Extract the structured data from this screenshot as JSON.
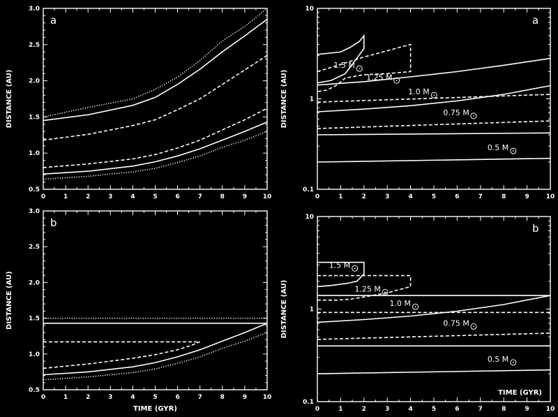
{
  "chart_data": [
    {
      "type": "line",
      "panel_label": "a",
      "ylabel": "DISTANCE (AU)",
      "xlabel": "",
      "xlim": [
        0,
        10
      ],
      "ylim": [
        0.5,
        3.0
      ],
      "yscale": "linear",
      "xticks": [
        0,
        1,
        2,
        3,
        4,
        5,
        6,
        7,
        8,
        9,
        10
      ],
      "yticks": [
        0.5,
        1.0,
        1.5,
        2.0,
        2.5,
        3.0
      ],
      "ytick_labels": [
        "0.5",
        "1.0",
        "1.5",
        "2.0",
        "2.5",
        "3.0"
      ],
      "series": [
        {
          "style": "dotted",
          "x": [
            0,
            2,
            4,
            5,
            6,
            7,
            8,
            9,
            10
          ],
          "y": [
            1.5,
            1.63,
            1.75,
            1.88,
            2.05,
            2.28,
            2.55,
            2.75,
            3.0
          ]
        },
        {
          "style": "solid",
          "x": [
            0,
            2,
            4,
            5,
            6,
            7,
            8,
            9,
            10
          ],
          "y": [
            1.45,
            1.53,
            1.66,
            1.77,
            1.95,
            2.16,
            2.4,
            2.62,
            2.85
          ]
        },
        {
          "style": "dashed",
          "x": [
            0,
            2,
            4,
            5,
            6,
            7,
            8,
            9,
            10
          ],
          "y": [
            1.18,
            1.26,
            1.38,
            1.46,
            1.6,
            1.75,
            1.95,
            2.15,
            2.35
          ]
        },
        {
          "style": "dashed",
          "x": [
            0,
            2,
            4,
            5,
            6,
            7,
            8,
            9,
            10
          ],
          "y": [
            0.8,
            0.85,
            0.92,
            0.98,
            1.07,
            1.18,
            1.32,
            1.46,
            1.62
          ]
        },
        {
          "style": "solid",
          "x": [
            0,
            2,
            4,
            5,
            6,
            7,
            8,
            9,
            10
          ],
          "y": [
            0.71,
            0.75,
            0.82,
            0.88,
            0.96,
            1.06,
            1.18,
            1.3,
            1.43
          ]
        },
        {
          "style": "dotted",
          "x": [
            0,
            2,
            4,
            5,
            6,
            7,
            8,
            9,
            10
          ],
          "y": [
            0.64,
            0.68,
            0.74,
            0.79,
            0.87,
            0.96,
            1.08,
            1.18,
            1.3
          ]
        }
      ]
    },
    {
      "type": "line",
      "panel_label": "b",
      "ylabel": "DISTANCE (AU)",
      "xlabel": "TIME (GYR)",
      "xlim": [
        0,
        10
      ],
      "ylim": [
        0.5,
        3.0
      ],
      "yscale": "linear",
      "xticks": [
        0,
        1,
        2,
        3,
        4,
        5,
        6,
        7,
        8,
        9,
        10
      ],
      "yticks": [
        0.5,
        1.0,
        1.5,
        2.0,
        2.5,
        3.0
      ],
      "ytick_labels": [
        "0.5",
        "1.0",
        "1.5",
        "2.0",
        "2.5",
        "3.0"
      ],
      "series": [
        {
          "style": "dotted",
          "x": [
            0,
            10
          ],
          "y": [
            1.5,
            1.5
          ]
        },
        {
          "style": "solid",
          "x": [
            0,
            10
          ],
          "y": [
            1.43,
            1.43
          ]
        },
        {
          "style": "dashed",
          "x": [
            0,
            7
          ],
          "y": [
            1.17,
            1.17
          ]
        },
        {
          "style": "dashed",
          "x": [
            0,
            2,
            4,
            5,
            6,
            6.6,
            7
          ],
          "y": [
            0.8,
            0.86,
            0.94,
            0.99,
            1.06,
            1.12,
            1.17
          ]
        },
        {
          "style": "solid",
          "x": [
            0,
            2,
            4,
            5,
            6,
            7,
            8,
            9,
            10
          ],
          "y": [
            0.71,
            0.75,
            0.82,
            0.88,
            0.96,
            1.06,
            1.18,
            1.3,
            1.43
          ]
        },
        {
          "style": "dotted",
          "x": [
            0,
            2,
            4,
            5,
            6,
            7,
            8,
            9,
            10
          ],
          "y": [
            0.64,
            0.68,
            0.74,
            0.79,
            0.87,
            0.96,
            1.08,
            1.18,
            1.3
          ]
        }
      ]
    },
    {
      "type": "line",
      "panel_label": "a",
      "ylabel": "DISTANCE (AU)",
      "xlabel": "",
      "xlim": [
        0,
        10
      ],
      "ylim": [
        0.1,
        10
      ],
      "yscale": "log",
      "xticks": [
        0,
        1,
        2,
        3,
        4,
        5,
        6,
        7,
        8,
        9,
        10
      ],
      "yticks": [
        0.1,
        1,
        10
      ],
      "ytick_labels": [
        "0.1",
        "1",
        "10"
      ],
      "series": [
        {
          "style": "solid",
          "x": [
            0,
            1,
            1.4,
            1.8,
            2,
            2,
            1.6,
            1.2,
            0.6,
            0
          ],
          "y": [
            3.1,
            3.3,
            3.7,
            4.3,
            5.0,
            3.6,
            2.6,
            1.9,
            1.6,
            1.5
          ]
        },
        {
          "style": "dashed",
          "x": [
            0,
            1,
            2,
            3,
            4,
            4,
            3,
            2,
            1.2,
            0.8,
            0.4,
            0
          ],
          "y": [
            2.0,
            2.4,
            2.9,
            3.4,
            4.0,
            2.0,
            1.9,
            1.85,
            1.7,
            1.4,
            1.25,
            1.2
          ]
        },
        {
          "style": "solid",
          "x": [
            0,
            2,
            4,
            6,
            8,
            10
          ],
          "y": [
            1.42,
            1.55,
            1.75,
            2.0,
            2.35,
            2.8
          ]
        },
        {
          "style": "dashed",
          "x": [
            0,
            10
          ],
          "y": [
            0.92,
            1.12
          ]
        },
        {
          "style": "solid",
          "x": [
            0,
            2,
            4,
            6,
            8,
            10
          ],
          "y": [
            0.72,
            0.77,
            0.84,
            0.95,
            1.12,
            1.4
          ]
        },
        {
          "style": "dashed",
          "x": [
            0,
            10
          ],
          "y": [
            0.47,
            0.57
          ]
        },
        {
          "style": "solid",
          "x": [
            0,
            10
          ],
          "y": [
            0.4,
            0.42
          ]
        },
        {
          "style": "solid",
          "x": [
            0,
            10
          ],
          "y": [
            0.2,
            0.22
          ]
        }
      ],
      "labels": [
        {
          "text": "1.5 M",
          "x": 0.7,
          "y": 2.2
        },
        {
          "text": "1.25 M",
          "x": 2.1,
          "y": 1.62
        },
        {
          "text": "1.0 M",
          "x": 3.9,
          "y": 1.12
        },
        {
          "text": "0.75 M",
          "x": 5.4,
          "y": 0.66
        },
        {
          "text": "0.5 M",
          "x": 7.3,
          "y": 0.27
        }
      ]
    },
    {
      "type": "line",
      "panel_label": "b",
      "ylabel": "DISTANCE (AU)",
      "xlabel": "TIME (GYR)",
      "xlim": [
        0,
        10
      ],
      "ylim": [
        0.1,
        10
      ],
      "yscale": "log",
      "xticks": [
        0,
        1,
        2,
        3,
        4,
        5,
        6,
        7,
        8,
        9,
        10
      ],
      "yticks": [
        0.1,
        1,
        10
      ],
      "ytick_labels": [
        "0.1",
        "1",
        "10"
      ],
      "series": [
        {
          "style": "solid",
          "x": [
            0,
            2,
            2,
            1.7,
            1.3,
            0.6,
            0
          ],
          "y": [
            3.2,
            3.2,
            2.4,
            2.0,
            1.9,
            1.8,
            1.75
          ]
        },
        {
          "style": "dashed",
          "x": [
            0,
            4,
            4,
            3,
            2,
            1.4,
            0.8,
            0
          ],
          "y": [
            2.3,
            2.3,
            1.75,
            1.5,
            1.35,
            1.28,
            1.25,
            1.25
          ]
        },
        {
          "style": "solid",
          "x": [
            0,
            10
          ],
          "y": [
            1.4,
            1.4
          ]
        },
        {
          "style": "dashed",
          "x": [
            0,
            10
          ],
          "y": [
            0.92,
            0.92
          ]
        },
        {
          "style": "solid",
          "x": [
            0,
            2,
            4,
            6,
            8,
            10
          ],
          "y": [
            0.72,
            0.77,
            0.84,
            0.95,
            1.12,
            1.4
          ]
        },
        {
          "style": "dashed",
          "x": [
            0,
            10
          ],
          "y": [
            0.47,
            0.55
          ]
        },
        {
          "style": "solid",
          "x": [
            0,
            10
          ],
          "y": [
            0.4,
            0.4
          ]
        },
        {
          "style": "solid",
          "x": [
            0,
            10
          ],
          "y": [
            0.2,
            0.22
          ]
        }
      ],
      "labels": [
        {
          "text": "1.5 M",
          "x": 0.5,
          "y": 2.8
        },
        {
          "text": "1.25 M",
          "x": 1.6,
          "y": 1.55
        },
        {
          "text": "1.0 M",
          "x": 3.1,
          "y": 1.08
        },
        {
          "text": "0.75 M",
          "x": 5.4,
          "y": 0.66
        },
        {
          "text": "0.5 M",
          "x": 7.3,
          "y": 0.27
        }
      ]
    }
  ]
}
